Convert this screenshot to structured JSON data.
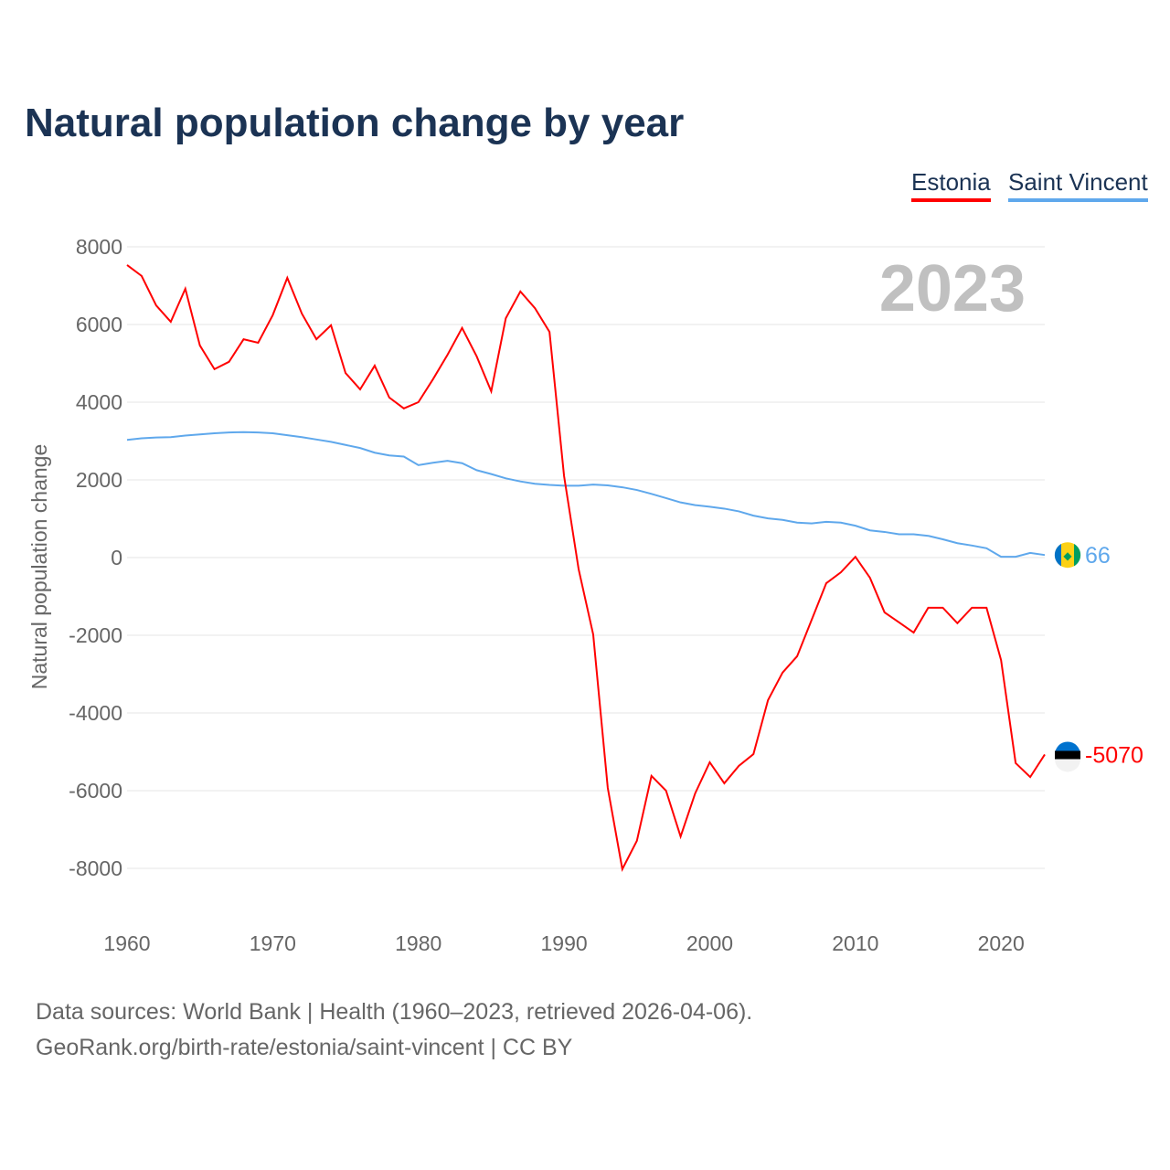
{
  "title": "Natural population change by year",
  "source_line1": "Data sources: World Bank | Health (1960–2023, retrieved 2026-04-06).",
  "source_line2": "GeoRank.org/birth-rate/estonia/saint-vincent | CC BY",
  "chart_data": {
    "type": "line",
    "title": "Natural population change by year",
    "ylabel": "Natural population change",
    "xlabel": "",
    "year_label": "2023",
    "ylim": [
      -8000,
      8000
    ],
    "xlim": [
      1960,
      2023
    ],
    "yticks": [
      "8000",
      "6000",
      "4000",
      "2000",
      "0",
      "-2000",
      "-4000",
      "-6000",
      "-8000"
    ],
    "xticks": [
      "1960",
      "1970",
      "1980",
      "1990",
      "2000",
      "2010",
      "2020"
    ],
    "grid": true,
    "legend_position": "top-right",
    "x": [
      1960,
      1961,
      1962,
      1963,
      1964,
      1965,
      1966,
      1967,
      1968,
      1969,
      1970,
      1971,
      1972,
      1973,
      1974,
      1975,
      1976,
      1977,
      1978,
      1979,
      1980,
      1981,
      1982,
      1983,
      1984,
      1985,
      1986,
      1987,
      1988,
      1989,
      1990,
      1991,
      1992,
      1993,
      1994,
      1995,
      1996,
      1997,
      1998,
      1999,
      2000,
      2001,
      2002,
      2003,
      2004,
      2005,
      2006,
      2007,
      2008,
      2009,
      2010,
      2011,
      2012,
      2013,
      2014,
      2015,
      2016,
      2017,
      2018,
      2019,
      2020,
      2021,
      2022,
      2023
    ],
    "series": [
      {
        "name": "Estonia",
        "color": "#ff0000",
        "end_label": "-5070",
        "values": [
          7530,
          7250,
          6490,
          6070,
          6920,
          5460,
          4850,
          5040,
          5620,
          5530,
          6240,
          7200,
          6280,
          5620,
          5980,
          4750,
          4330,
          4940,
          4120,
          3840,
          4000,
          4590,
          5220,
          5910,
          5180,
          4280,
          6160,
          6850,
          6420,
          5810,
          2100,
          -300,
          -1980,
          -5930,
          -8020,
          -7290,
          -5620,
          -6000,
          -7180,
          -6070,
          -5270,
          -5810,
          -5360,
          -5060,
          -3670,
          -2960,
          -2540,
          -1600,
          -660,
          -380,
          20,
          -520,
          -1410,
          -1670,
          -1930,
          -1290,
          -1290,
          -1690,
          -1290,
          -1290,
          -2640,
          -5290,
          -5650,
          -5070
        ]
      },
      {
        "name": "Saint Vincent",
        "color": "#5fa8ec",
        "end_label": "66",
        "values": [
          3030,
          3070,
          3090,
          3100,
          3140,
          3170,
          3200,
          3220,
          3230,
          3220,
          3200,
          3150,
          3100,
          3040,
          2980,
          2900,
          2820,
          2700,
          2630,
          2600,
          2380,
          2440,
          2490,
          2430,
          2250,
          2150,
          2040,
          1960,
          1900,
          1870,
          1850,
          1850,
          1880,
          1860,
          1810,
          1740,
          1640,
          1530,
          1420,
          1350,
          1310,
          1260,
          1190,
          1080,
          1010,
          970,
          900,
          880,
          920,
          900,
          820,
          700,
          660,
          600,
          600,
          560,
          470,
          370,
          310,
          240,
          20,
          20,
          120,
          66
        ]
      }
    ]
  }
}
